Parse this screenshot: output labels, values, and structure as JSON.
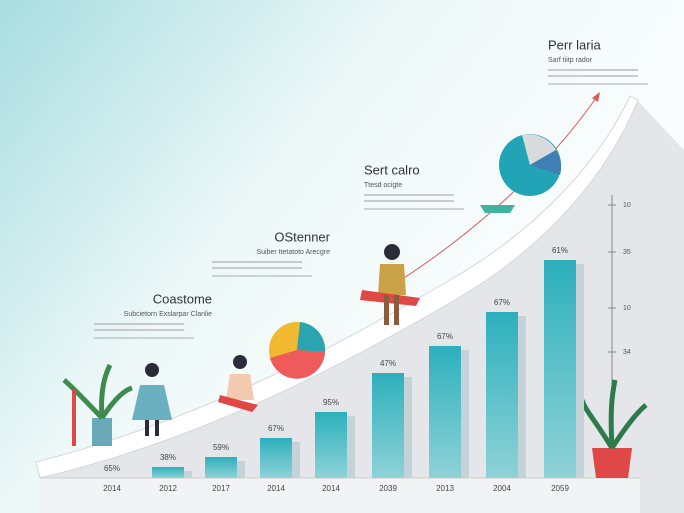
{
  "blocks": [
    {
      "title": "Perr laria",
      "subtitle": "Sarf tiitp rador"
    },
    {
      "title": "Sert calro",
      "subtitle": "Ttesd ocigte"
    },
    {
      "title": "OStenner",
      "subtitle": "Suiber ttetatoto Arecgre"
    },
    {
      "title": "Coastome",
      "subtitle": "Subcietorn Exslarpar Clanlie"
    }
  ],
  "bar_labels": [
    "65%",
    "38%",
    "59%",
    "67%",
    "95%",
    "47%",
    "67%",
    "67%",
    "61%"
  ],
  "years": [
    "2014",
    "2012",
    "2017",
    "2014",
    "2014",
    "2039",
    "2013",
    "2004",
    "2059"
  ],
  "side_axis": [
    "10",
    "35",
    "10",
    "34"
  ]
}
